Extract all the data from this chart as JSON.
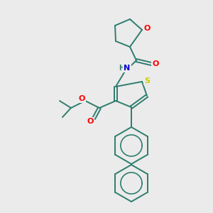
{
  "background_color": "#ebebeb",
  "bond_color": "#2d7d6e",
  "atom_colors": {
    "O": "#ff0000",
    "N": "#0000cd",
    "S": "#cccc00",
    "C": "#2d7d6e"
  },
  "figsize": [
    3.0,
    3.0
  ],
  "dpi": 100
}
